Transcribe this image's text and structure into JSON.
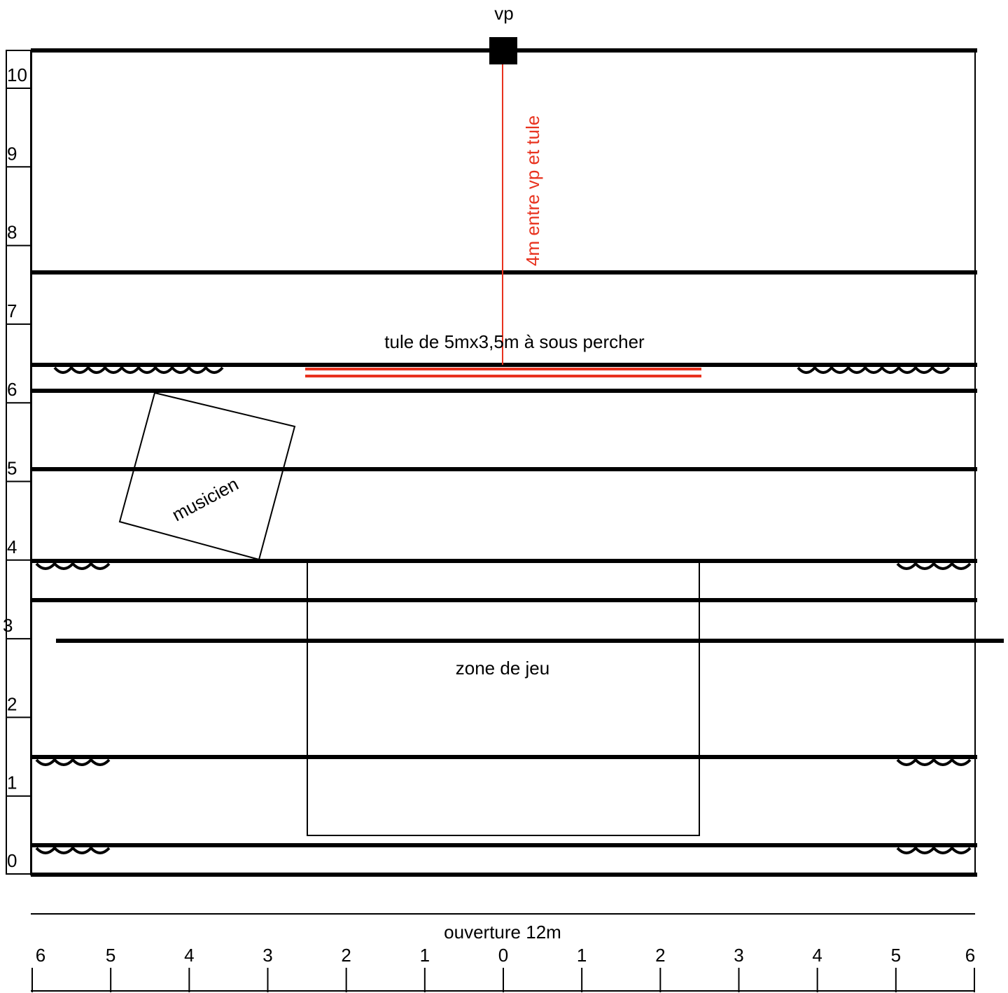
{
  "labels": {
    "vp": "vp",
    "distance_note": "4m  entre vp et tule",
    "tulle_note": "tule de 5mx3,5m à sous percher",
    "musician": "musicien",
    "play_zone": "zone de jeu",
    "opening": "ouverture 12m"
  },
  "depth_scale": [
    "0",
    "1",
    "2",
    "3",
    "4",
    "5",
    "6",
    "7",
    "8",
    "9",
    "10"
  ],
  "width_scale": [
    "6",
    "5",
    "4",
    "3",
    "2",
    "1",
    "0",
    "1",
    "2",
    "3",
    "4",
    "5",
    "6"
  ],
  "colors": {
    "line": "#000000",
    "accent": "#e8321e"
  }
}
